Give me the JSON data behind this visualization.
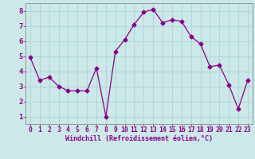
{
  "x": [
    0,
    1,
    2,
    3,
    4,
    5,
    6,
    7,
    8,
    9,
    10,
    11,
    12,
    13,
    14,
    15,
    16,
    17,
    18,
    19,
    20,
    21,
    22,
    23
  ],
  "y": [
    4.9,
    3.4,
    3.6,
    3.0,
    2.7,
    2.7,
    2.7,
    4.2,
    1.0,
    5.3,
    6.1,
    7.1,
    7.9,
    8.1,
    7.2,
    7.4,
    7.3,
    6.3,
    5.8,
    4.3,
    4.4,
    3.1,
    1.5,
    3.4
  ],
  "line_color": "#880088",
  "marker": "D",
  "marker_size": 2.5,
  "bg_color": "#cce8e8",
  "grid_color": "#b0d8d8",
  "xlabel": "Windchill (Refroidissement éolien,°C)",
  "xlabel_color": "#880088",
  "tick_color": "#880088",
  "spine_color": "#888888",
  "xlim": [
    -0.5,
    23.5
  ],
  "ylim": [
    0.5,
    8.5
  ],
  "yticks": [
    1,
    2,
    3,
    4,
    5,
    6,
    7,
    8
  ],
  "xticks": [
    0,
    1,
    2,
    3,
    4,
    5,
    6,
    7,
    8,
    9,
    10,
    11,
    12,
    13,
    14,
    15,
    16,
    17,
    18,
    19,
    20,
    21,
    22,
    23
  ],
  "tick_fontsize": 5.8,
  "ytick_fontsize": 6.5,
  "xlabel_fontsize": 6.0
}
